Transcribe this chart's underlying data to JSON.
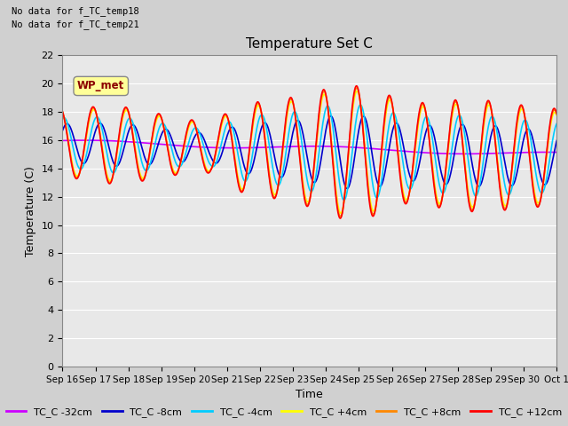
{
  "title": "Temperature Set C",
  "ylabel": "Temperature (C)",
  "xlabel": "Time",
  "annotations": [
    "No data for f_TC_temp18",
    "No data for f_TC_temp21"
  ],
  "wp_met_label": "WP_met",
  "ylim": [
    0,
    22
  ],
  "yticks": [
    0,
    2,
    4,
    6,
    8,
    10,
    12,
    14,
    16,
    18,
    20,
    22
  ],
  "xtick_labels": [
    "Sep 16",
    "Sep 17",
    "Sep 18",
    "Sep 19",
    "Sep 20",
    "Sep 21",
    "Sep 22",
    "Sep 23",
    "Sep 24",
    "Sep 25",
    "Sep 26",
    "Sep 27",
    "Sep 28",
    "Sep 29",
    "Sep 30",
    "Oct 1"
  ],
  "series": [
    {
      "label": "TC_C -32cm",
      "color": "#cc00ff",
      "lw": 1.2
    },
    {
      "label": "TC_C -8cm",
      "color": "#0000cc",
      "lw": 1.2
    },
    {
      "label": "TC_C -4cm",
      "color": "#00ccff",
      "lw": 1.2
    },
    {
      "label": "TC_C +4cm",
      "color": "#ffff00",
      "lw": 1.2
    },
    {
      "label": "TC_C +8cm",
      "color": "#ff8800",
      "lw": 1.2
    },
    {
      "label": "TC_C +12cm",
      "color": "#ff0000",
      "lw": 1.2
    }
  ],
  "fig_facecolor": "#d0d0d0",
  "axes_facecolor": "#e8e8e8",
  "grid_color": "#ffffff",
  "title_fontsize": 11,
  "label_fontsize": 9,
  "tick_fontsize": 8,
  "legend_fontsize": 8
}
